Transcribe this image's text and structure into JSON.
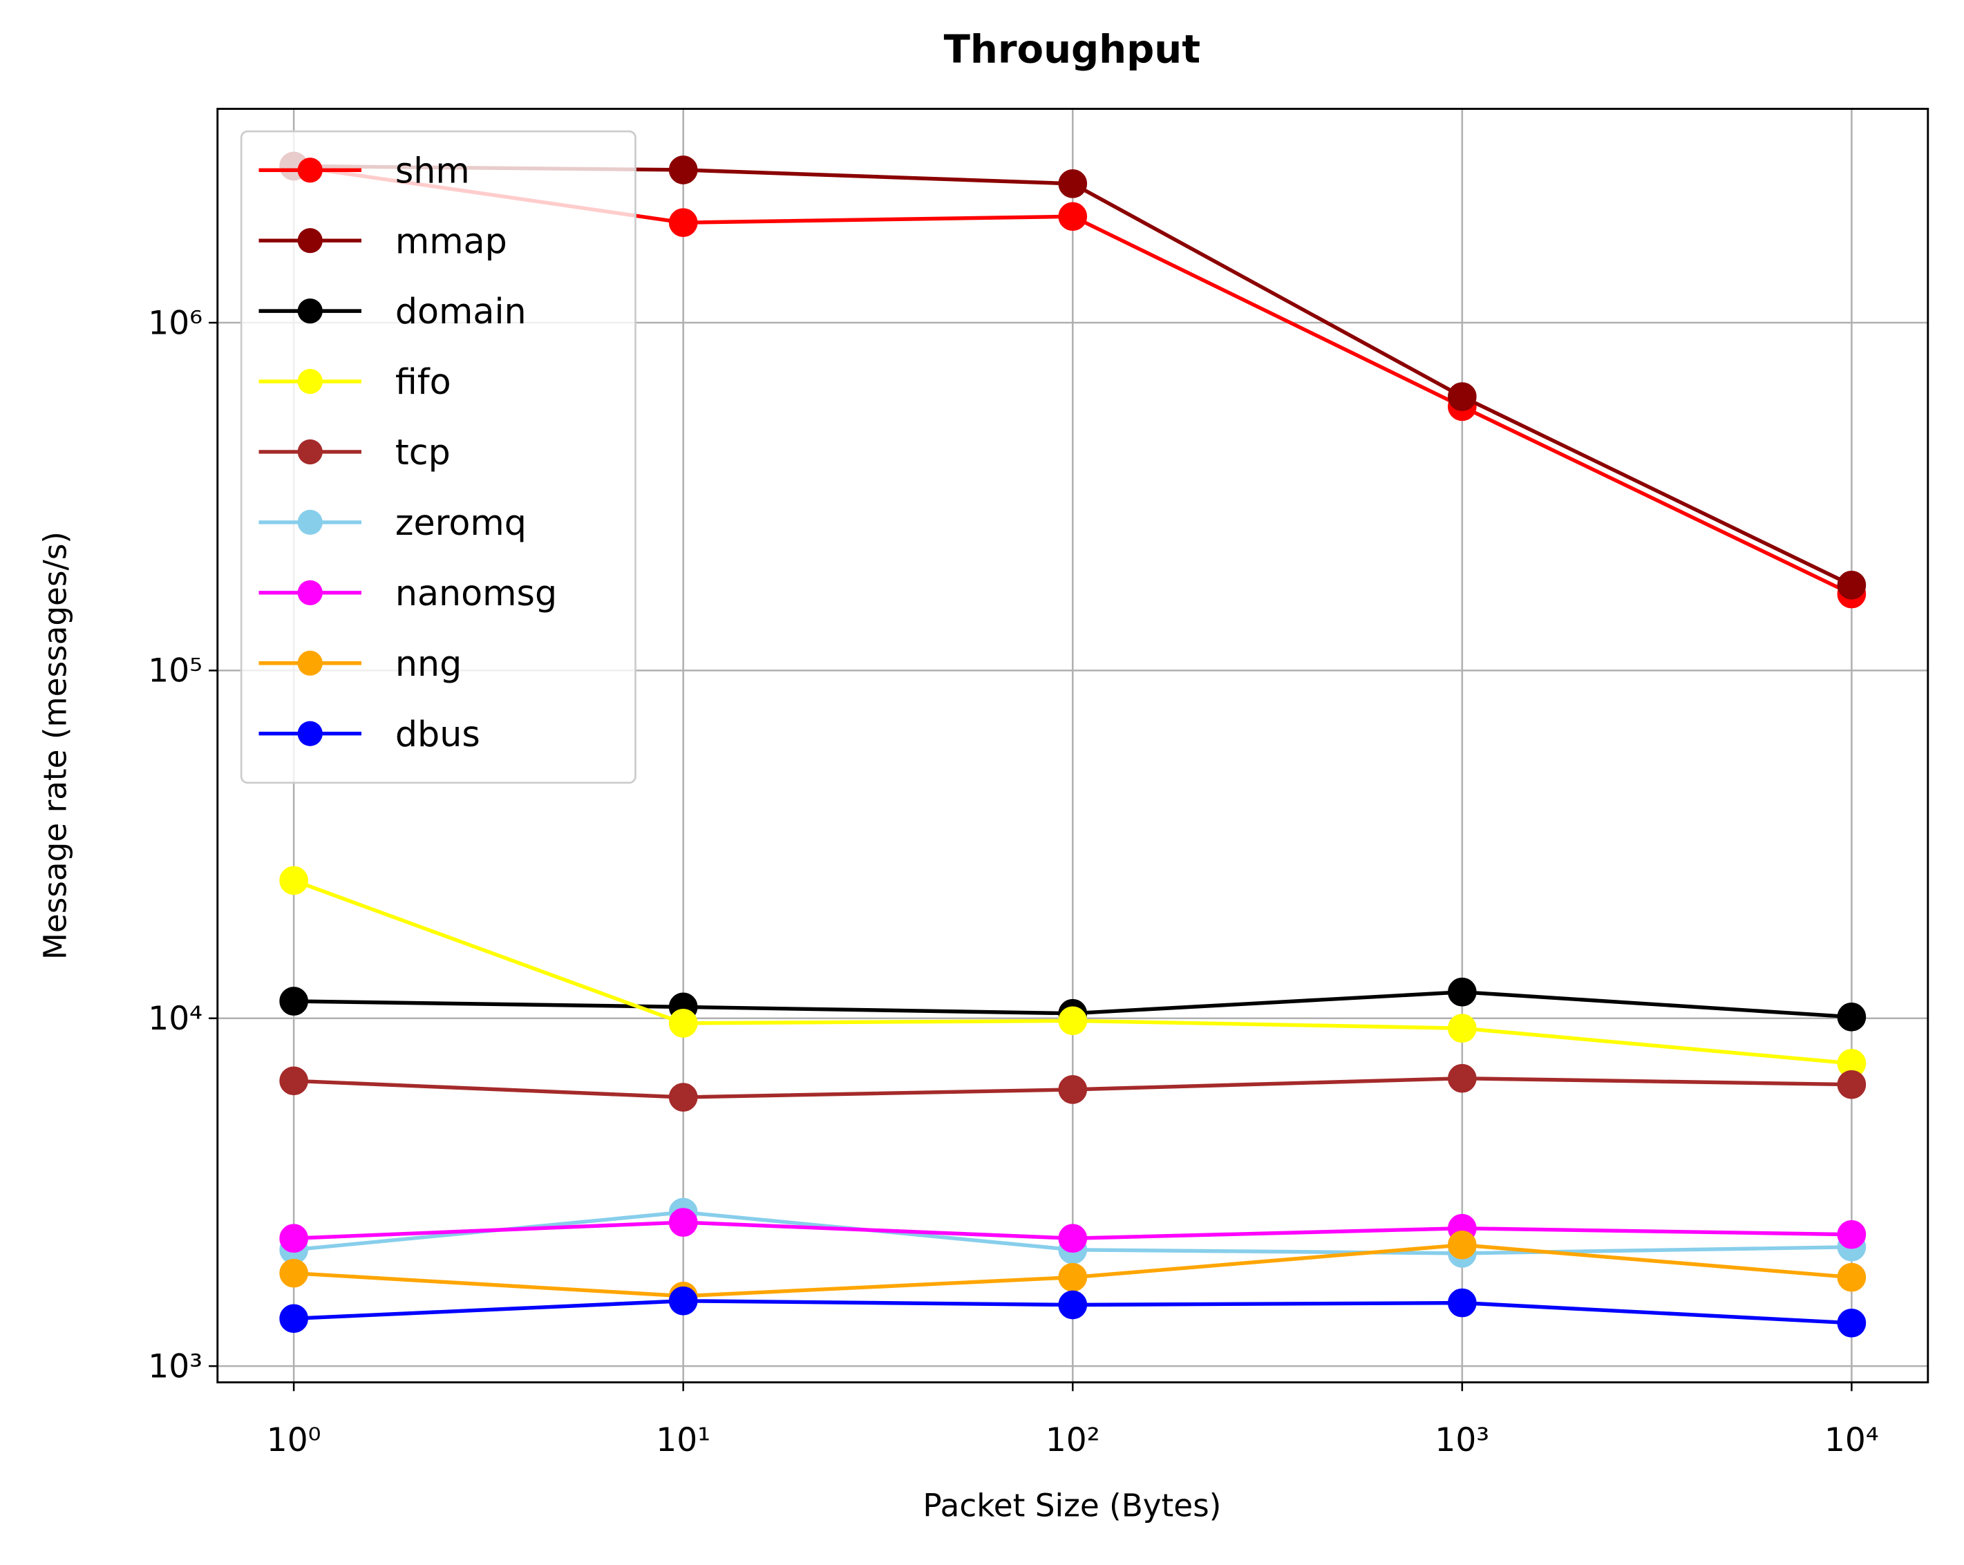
{
  "chart_data": {
    "type": "line",
    "title": "Throughput",
    "x_label": "Packet Size (Bytes)",
    "y_label": "Message rate (messages/s)",
    "x": [
      1,
      10,
      100,
      1000,
      10000
    ],
    "x_log": true,
    "y_log": true,
    "grid": true,
    "legend": "upper left",
    "xlim": [
      0.637,
      15700
    ],
    "xticks": [
      {
        "value": 1,
        "label": "10⁰"
      },
      {
        "value": 10,
        "label": "10¹"
      },
      {
        "value": 100,
        "label": "10²"
      },
      {
        "value": 1000,
        "label": "10³"
      },
      {
        "value": 10000,
        "label": "10⁴"
      }
    ],
    "ylim": [
      898,
      4120000
    ],
    "yticks": [
      {
        "value": 1000,
        "label": "10³"
      },
      {
        "value": 10000,
        "label": "10⁴"
      },
      {
        "value": 100000,
        "label": "10⁵"
      },
      {
        "value": 1000000,
        "label": "10⁶"
      }
    ],
    "series": [
      {
        "name": "shm",
        "color": "#ff0000",
        "values": [
          2820000,
          1940000,
          2020000,
          574000,
          166000
        ]
      },
      {
        "name": "mmap",
        "color": "#8b0000",
        "values": [
          2820000,
          2750000,
          2510000,
          613000,
          176000
        ]
      },
      {
        "name": "domain",
        "color": "#000000",
        "values": [
          11200,
          10780,
          10330,
          11900,
          10090
        ]
      },
      {
        "name": "fifo",
        "color": "#ffff00",
        "values": [
          24900,
          9680,
          9840,
          9360,
          7420
        ]
      },
      {
        "name": "tcp",
        "color": "#a52a2a",
        "values": [
          6610,
          5930,
          6240,
          6720,
          6450
        ]
      },
      {
        "name": "zeromq",
        "color": "#87ceeb",
        "values": [
          2160,
          2770,
          2160,
          2110,
          2200
        ]
      },
      {
        "name": "nanomsg",
        "color": "#ff00ff",
        "values": [
          2330,
          2590,
          2330,
          2490,
          2390
        ]
      },
      {
        "name": "nng",
        "color": "#ffa500",
        "values": [
          1850,
          1590,
          1800,
          2230,
          1800
        ]
      },
      {
        "name": "dbus",
        "color": "#0000ff",
        "values": [
          1370,
          1540,
          1500,
          1520,
          1330
        ]
      }
    ]
  }
}
